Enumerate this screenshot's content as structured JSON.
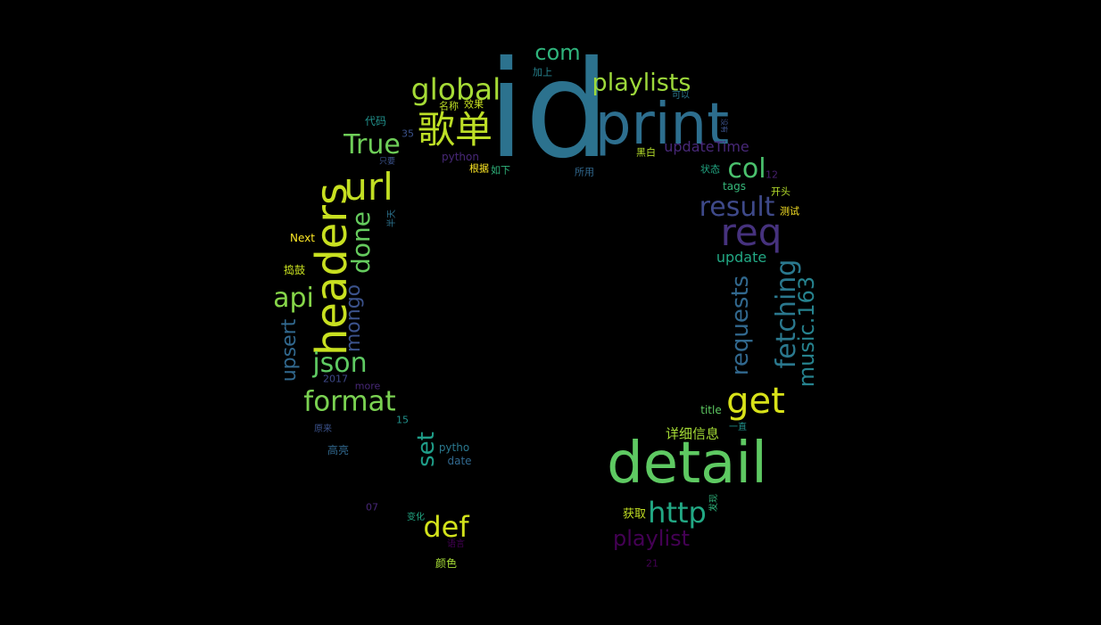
{
  "words": [
    {
      "text": "id",
      "color": "#2c728e"
    },
    {
      "text": "print",
      "color": "#2d6e8e"
    },
    {
      "text": "detail",
      "color": "#5ec962"
    },
    {
      "text": "headers",
      "color": "#c8e020"
    },
    {
      "text": "歌单",
      "color": "#bddf26"
    },
    {
      "text": "url",
      "color": "#c2df23"
    },
    {
      "text": "global",
      "color": "#a5db36"
    },
    {
      "text": "playlists",
      "color": "#9dd93b"
    },
    {
      "text": "get",
      "color": "#d8e219"
    },
    {
      "text": "req",
      "color": "#46327e"
    },
    {
      "text": "result",
      "color": "#3e4989"
    },
    {
      "text": "http",
      "color": "#22a884"
    },
    {
      "text": "format",
      "color": "#7ad151"
    },
    {
      "text": "fetching",
      "color": "#2a788e"
    },
    {
      "text": "requests",
      "color": "#31688e"
    },
    {
      "text": "music.163",
      "color": "#26828e"
    },
    {
      "text": "True",
      "color": "#6ece58"
    },
    {
      "text": "col",
      "color": "#4ac16d"
    },
    {
      "text": "json",
      "color": "#5ec962"
    },
    {
      "text": "api",
      "color": "#86d549"
    },
    {
      "text": "done",
      "color": "#65cb5e"
    },
    {
      "text": "def",
      "color": "#d2e21b"
    },
    {
      "text": "playlist",
      "color": "#440154"
    },
    {
      "text": "com",
      "color": "#2fb47c"
    },
    {
      "text": "mongo",
      "color": "#3b528b"
    },
    {
      "text": "set",
      "color": "#1f9e89"
    },
    {
      "text": "upsert",
      "color": "#31688e"
    },
    {
      "text": "updateTime",
      "color": "#482878"
    },
    {
      "text": "update",
      "color": "#22a884"
    },
    {
      "text": "详细信息",
      "color": "#a5db36"
    },
    {
      "text": "获取",
      "color": "#c2df23"
    },
    {
      "text": "代码",
      "color": "#21918c"
    },
    {
      "text": "加上",
      "color": "#26828e"
    },
    {
      "text": "可以",
      "color": "#2a788e"
    },
    {
      "text": "效果",
      "color": "#c8e020"
    },
    {
      "text": "名称",
      "color": "#bddf26"
    },
    {
      "text": "35",
      "color": "#3b528b"
    },
    {
      "text": "python",
      "color": "#482878"
    },
    {
      "text": "根据",
      "color": "#fde725"
    },
    {
      "text": "如下",
      "color": "#2fb47c"
    },
    {
      "text": "所用",
      "color": "#31688e"
    },
    {
      "text": "黑白",
      "color": "#b5de2b"
    },
    {
      "text": "状态",
      "color": "#22a884"
    },
    {
      "text": "tags",
      "color": "#35b779"
    },
    {
      "text": "12",
      "color": "#481f70"
    },
    {
      "text": "开头",
      "color": "#b5de2b"
    },
    {
      "text": "测试",
      "color": "#fde725"
    },
    {
      "text": "只要",
      "color": "#3b528b"
    },
    {
      "text": "半天",
      "color": "#2c728e"
    },
    {
      "text": "Next",
      "color": "#fde725"
    },
    {
      "text": "捣鼓",
      "color": "#c8e020"
    },
    {
      "text": "2017",
      "color": "#3e4989"
    },
    {
      "text": "more",
      "color": "#482878"
    },
    {
      "text": "15",
      "color": "#21918c"
    },
    {
      "text": "原来",
      "color": "#3b528b"
    },
    {
      "text": "高亮",
      "color": "#31688e"
    },
    {
      "text": "pytho",
      "color": "#2a788e"
    },
    {
      "text": "date",
      "color": "#31688e"
    },
    {
      "text": "07",
      "color": "#482878"
    },
    {
      "text": "变化",
      "color": "#22a884"
    },
    {
      "text": "语言",
      "color": "#440154"
    },
    {
      "text": "颜色",
      "color": "#a5db36"
    },
    {
      "text": "21",
      "color": "#440154"
    },
    {
      "text": "title",
      "color": "#5ec962"
    },
    {
      "text": "一直",
      "color": "#21918c"
    },
    {
      "text": "发现",
      "color": "#2fb47c"
    },
    {
      "text": "没有",
      "color": "#3b528b"
    }
  ]
}
